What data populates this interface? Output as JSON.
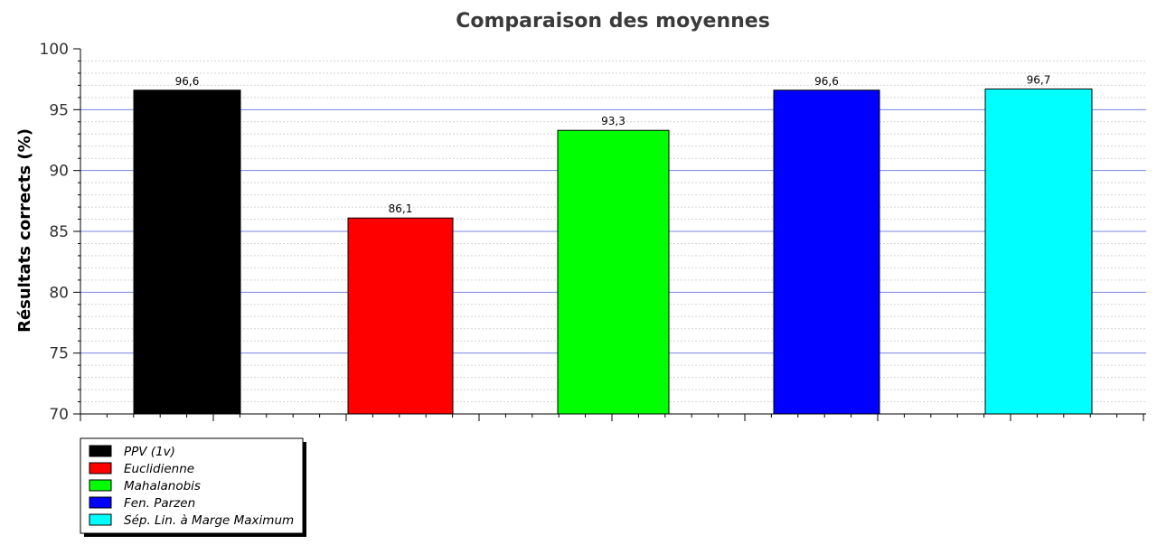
{
  "chart_data": {
    "type": "bar",
    "title": "Comparaison des moyennes",
    "xlabel": "",
    "ylabel": "Résultats corrects (%)",
    "ylim": [
      70,
      100
    ],
    "yticks": [
      70,
      75,
      80,
      85,
      90,
      95,
      100
    ],
    "grid": true,
    "legend_position": "bottom-left",
    "categories": [
      "PPV (1v)",
      "Euclidienne",
      "Mahalanobis",
      "Fen. Parzen",
      "Sép. Lin. à Marge Maximum"
    ],
    "values": [
      96.6,
      86.1,
      93.3,
      96.6,
      96.7
    ],
    "value_labels": [
      "96,6",
      "86,1",
      "93,3",
      "96,6",
      "96,7"
    ],
    "colors": [
      "#000000",
      "#ff0000",
      "#00ff00",
      "#0000ff",
      "#00ffff"
    ],
    "grid_color": "#6a78e0"
  }
}
